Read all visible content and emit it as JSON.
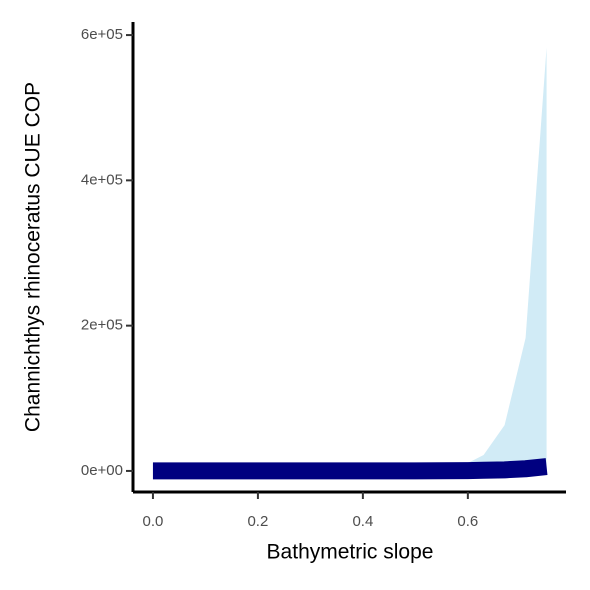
{
  "chart_data": {
    "type": "ribbon-line",
    "x_label": "Bathymetric slope",
    "y_label": "Channichthys rhinoceratus  CUE COP",
    "x": [
      0,
      0.1,
      0.2,
      0.3,
      0.4,
      0.5,
      0.6,
      0.63,
      0.67,
      0.71,
      0.75
    ],
    "series": [
      {
        "color": "#000080",
        "values": [
          0,
          0,
          0,
          0,
          0,
          0,
          500,
          1000,
          1500,
          3000,
          6000
        ]
      }
    ],
    "ribbon": {
      "color": "#d1ebf6",
      "upper": [
        9000,
        9000,
        9000,
        9000,
        9000,
        9000,
        11000,
        22000,
        63000,
        183000,
        583000
      ],
      "lower": [
        -5000,
        -5000,
        -5000,
        -5000,
        -5000,
        -5000,
        -5000,
        -5000,
        -5000,
        -5000,
        -5000
      ]
    },
    "xlim": [
      -0.038,
      0.787
    ],
    "ylim": [
      -29000,
      618000
    ],
    "xticks": [
      {
        "value": 0,
        "label": "0.0"
      },
      0.2,
      0.4,
      0.6
    ],
    "yticks": [
      {
        "value": 0,
        "label": "0e+00"
      },
      {
        "value": 200000,
        "label": "2e+05"
      },
      {
        "value": 400000,
        "label": "4e+05"
      },
      {
        "value": 600000,
        "label": "6e+05"
      }
    ],
    "grid": false
  }
}
